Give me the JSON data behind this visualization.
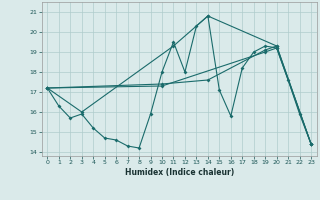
{
  "title": "",
  "xlabel": "Humidex (Indice chaleur)",
  "bg_color": "#daeaea",
  "grid_color": "#b0cccc",
  "line_color": "#1a6b6b",
  "xlim": [
    -0.5,
    23.5
  ],
  "ylim": [
    13.8,
    21.5
  ],
  "yticks": [
    14,
    15,
    16,
    17,
    18,
    19,
    20,
    21
  ],
  "xticks": [
    0,
    1,
    2,
    3,
    4,
    5,
    6,
    7,
    8,
    9,
    10,
    11,
    12,
    13,
    14,
    15,
    16,
    17,
    18,
    19,
    20,
    21,
    22,
    23
  ],
  "series1": [
    [
      0,
      17.2
    ],
    [
      1,
      16.3
    ],
    [
      2,
      15.7
    ],
    [
      3,
      15.9
    ],
    [
      4,
      15.2
    ],
    [
      5,
      14.7
    ],
    [
      6,
      14.6
    ],
    [
      7,
      14.3
    ],
    [
      8,
      14.2
    ],
    [
      9,
      15.9
    ],
    [
      10,
      18.0
    ],
    [
      11,
      19.5
    ],
    [
      12,
      18.0
    ],
    [
      13,
      20.3
    ],
    [
      14,
      20.8
    ],
    [
      15,
      17.1
    ],
    [
      16,
      15.8
    ],
    [
      17,
      18.2
    ],
    [
      18,
      19.0
    ],
    [
      19,
      19.3
    ],
    [
      20,
      19.2
    ],
    [
      21,
      17.6
    ],
    [
      22,
      15.9
    ],
    [
      23,
      14.4
    ]
  ],
  "series2": [
    [
      0,
      17.2
    ],
    [
      3,
      16.0
    ],
    [
      11,
      19.3
    ],
    [
      14,
      20.8
    ],
    [
      20,
      19.3
    ],
    [
      23,
      14.4
    ]
  ],
  "series3": [
    [
      0,
      17.2
    ],
    [
      10,
      17.4
    ],
    [
      14,
      17.6
    ],
    [
      19,
      19.1
    ],
    [
      20,
      19.3
    ],
    [
      23,
      14.4
    ]
  ],
  "series4": [
    [
      0,
      17.2
    ],
    [
      10,
      17.3
    ],
    [
      19,
      19.0
    ],
    [
      20,
      19.2
    ],
    [
      23,
      14.4
    ]
  ]
}
